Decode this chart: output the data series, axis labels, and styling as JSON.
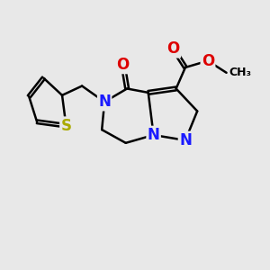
{
  "background_color": "#e8e8e8",
  "bond_color": "#000000",
  "bond_width": 1.8,
  "atoms": {
    "N_blue": "#1a1aff",
    "O_red": "#dd0000",
    "S_yellow": "#aaaa00",
    "C_black": "#000000"
  },
  "font_size_atom": 12,
  "xlim": [
    0,
    10
  ],
  "ylim": [
    0,
    10
  ]
}
